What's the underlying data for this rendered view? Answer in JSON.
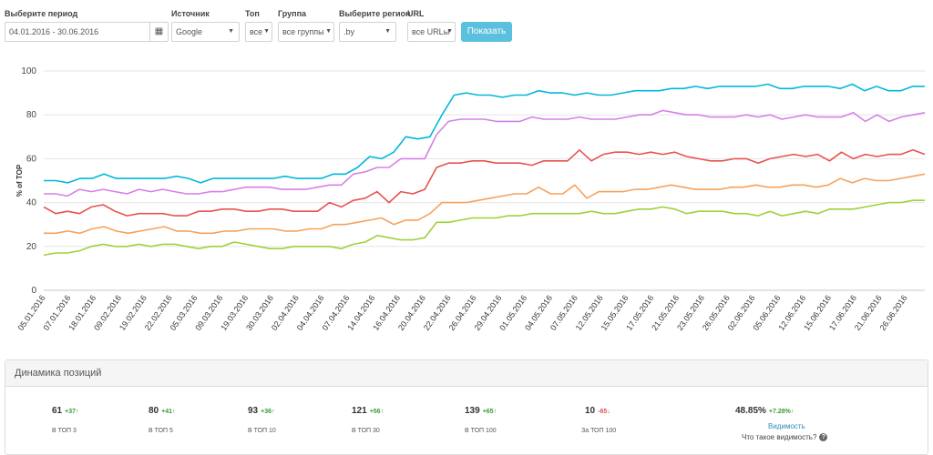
{
  "filters": {
    "period": {
      "label": "Выберите период",
      "value": "04.01.2016 - 30.06.2016"
    },
    "source": {
      "label": "Источник",
      "value": "Google"
    },
    "top": {
      "label": "Топ",
      "value": "все"
    },
    "group": {
      "label": "Группа",
      "value": "все группы"
    },
    "region": {
      "label": "Выберите регион",
      "value": ".by"
    },
    "url": {
      "label": "URL",
      "value": "все URLы"
    },
    "show_button": "Показать"
  },
  "chart_data": {
    "type": "line",
    "ylabel": "% of TOP",
    "ylim": [
      0,
      100
    ],
    "yticks": [
      0,
      20,
      40,
      60,
      80,
      100
    ],
    "grid": true,
    "x_tick_labels": [
      "05.01.2016",
      "07.01.2016",
      "18.01.2016",
      "09.02.2016",
      "19.02.2016",
      "22.02.2016",
      "05.03.2016",
      "09.03.2016",
      "19.03.2016",
      "30.03.2016",
      "02.04.2016",
      "04.04.2016",
      "07.04.2016",
      "14.04.2016",
      "16.04.2016",
      "20.04.2016",
      "22.04.2016",
      "26.04.2016",
      "29.04.2016",
      "01.05.2016",
      "04.05.2016",
      "07.05.2016",
      "12.05.2016",
      "15.05.2016",
      "17.05.2016",
      "21.05.2016",
      "23.05.2016",
      "26.05.2016",
      "02.06.2016",
      "05.06.2016",
      "12.06.2016",
      "15.06.2016",
      "17.06.2016",
      "21.06.2016",
      "26.06.2016"
    ],
    "series": [
      {
        "color": "#00b8dc",
        "values": [
          50,
          50,
          49,
          51,
          51,
          53,
          51,
          51,
          51,
          51,
          51,
          52,
          51,
          49,
          51,
          51,
          51,
          51,
          51,
          51,
          52,
          51,
          51,
          51,
          53,
          53,
          56,
          61,
          60,
          63,
          70,
          69,
          70,
          80,
          89,
          90,
          89,
          89,
          88,
          89,
          89,
          91,
          90,
          90,
          89,
          90,
          89,
          89,
          90,
          91,
          91,
          91,
          92,
          92,
          93,
          92,
          93,
          93,
          93,
          93,
          94,
          92,
          92,
          93,
          93,
          93,
          92,
          94,
          91,
          93,
          91,
          91,
          93,
          93
        ]
      },
      {
        "color": "#d580e8",
        "values": [
          44,
          44,
          43,
          46,
          45,
          46,
          45,
          44,
          46,
          45,
          46,
          45,
          44,
          44,
          45,
          45,
          46,
          47,
          47,
          47,
          46,
          46,
          46,
          47,
          48,
          48,
          53,
          54,
          56,
          56,
          60,
          60,
          60,
          71,
          77,
          78,
          78,
          78,
          77,
          77,
          77,
          79,
          78,
          78,
          78,
          79,
          78,
          78,
          78,
          79,
          80,
          80,
          82,
          81,
          80,
          80,
          79,
          79,
          79,
          80,
          79,
          80,
          78,
          79,
          80,
          79,
          79,
          79,
          81,
          77,
          80,
          77,
          79,
          80,
          81
        ]
      },
      {
        "color": "#e8534e",
        "values": [
          38,
          35,
          36,
          35,
          38,
          39,
          36,
          34,
          35,
          35,
          35,
          34,
          34,
          36,
          36,
          37,
          37,
          36,
          36,
          37,
          37,
          36,
          36,
          36,
          40,
          38,
          41,
          42,
          45,
          40,
          45,
          44,
          46,
          56,
          58,
          58,
          59,
          59,
          58,
          58,
          58,
          57,
          59,
          59,
          59,
          64,
          59,
          62,
          63,
          63,
          62,
          63,
          62,
          63,
          61,
          60,
          59,
          59,
          60,
          60,
          58,
          60,
          61,
          62,
          61,
          62,
          59,
          63,
          60,
          62,
          61,
          62,
          62,
          64,
          62
        ]
      },
      {
        "color": "#f5a25d",
        "values": [
          26,
          26,
          27,
          26,
          28,
          29,
          27,
          26,
          27,
          28,
          29,
          27,
          27,
          26,
          26,
          27,
          27,
          28,
          28,
          28,
          27,
          27,
          28,
          28,
          30,
          30,
          31,
          32,
          33,
          30,
          32,
          32,
          35,
          40,
          40,
          40,
          41,
          42,
          43,
          44,
          44,
          47,
          44,
          44,
          48,
          42,
          45,
          45,
          45,
          46,
          46,
          47,
          48,
          47,
          46,
          46,
          46,
          47,
          47,
          48,
          47,
          47,
          48,
          48,
          47,
          48,
          51,
          49,
          51,
          50,
          50,
          51,
          52,
          53
        ]
      },
      {
        "color": "#9fd13c",
        "values": [
          16,
          17,
          17,
          18,
          20,
          21,
          20,
          20,
          21,
          20,
          21,
          21,
          20,
          19,
          20,
          20,
          22,
          21,
          20,
          19,
          19,
          20,
          20,
          20,
          20,
          19,
          21,
          22,
          25,
          24,
          23,
          23,
          24,
          31,
          31,
          32,
          33,
          33,
          33,
          34,
          34,
          35,
          35,
          35,
          35,
          35,
          36,
          35,
          35,
          36,
          37,
          37,
          38,
          37,
          35,
          36,
          36,
          36,
          35,
          35,
          34,
          36,
          34,
          35,
          36,
          35,
          37,
          37,
          37,
          38,
          39,
          40,
          40,
          41,
          41
        ]
      }
    ]
  },
  "panel": {
    "title": "Динамика позиций",
    "stats": [
      {
        "value": "61",
        "delta": "+37",
        "delta_color": "#3a9a3a",
        "label": "В ТОП 3"
      },
      {
        "value": "80",
        "delta": "+41",
        "delta_color": "#3a9a3a",
        "label": "В ТОП 5"
      },
      {
        "value": "93",
        "delta": "+36",
        "delta_color": "#3a9a3a",
        "label": "В ТОП 10"
      },
      {
        "value": "121",
        "delta": "+56",
        "delta_color": "#3a9a3a",
        "label": "В ТОП 30"
      },
      {
        "value": "139",
        "delta": "+65",
        "delta_color": "#3a9a3a",
        "label": "В ТОП 100"
      },
      {
        "value": "10",
        "delta": "-65",
        "delta_color": "#d9534f",
        "label": "За ТОП 100"
      }
    ],
    "visibility": {
      "value": "48.85%",
      "delta": "+7.28%",
      "link": "Видимость",
      "question": "Что такое видимость?"
    }
  }
}
